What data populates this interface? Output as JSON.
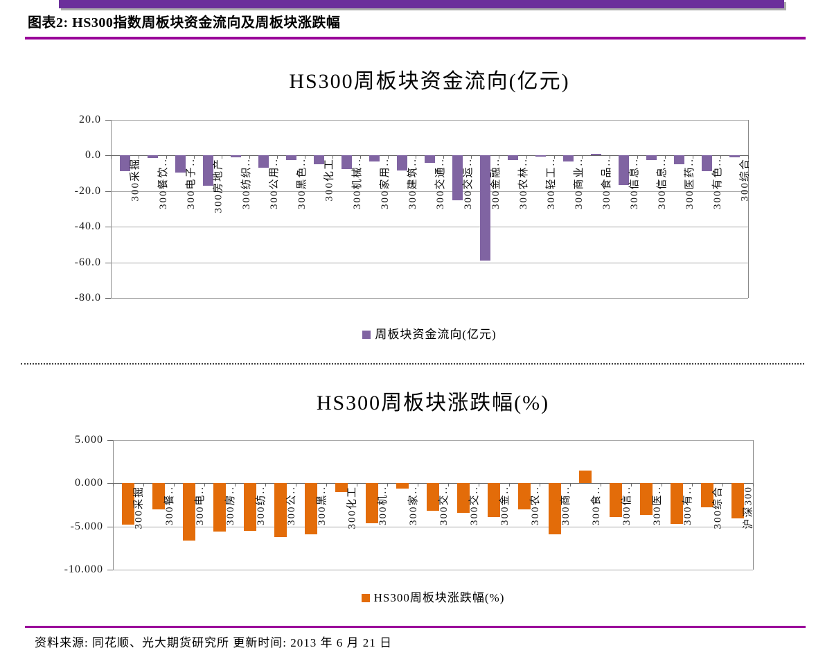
{
  "header": {
    "title": "图表2: HS300指数周板块资金流向及周板块涨跌幅"
  },
  "footer": {
    "source": "资料来源: 同花顺、光大期货研究所 更新时间: 2013 年 6 月 21 日"
  },
  "colors": {
    "banner": "#6B2F9B",
    "rule": "#990099",
    "flow_bar": "#8064A2",
    "change_bar": "#E36C09"
  },
  "chart_data": [
    {
      "type": "bar",
      "title": "HS300周板块资金流向(亿元)",
      "legend": "周板块资金流向(亿元)",
      "legend_position": "bottom",
      "bar_color": "#8064A2",
      "grid": true,
      "ylim": [
        -80,
        20
      ],
      "yticks": [
        20,
        0,
        -20,
        -40,
        -60,
        -80
      ],
      "ytick_labels": [
        "20.0",
        "0.0",
        "-20.0",
        "-40.0",
        "-60.0",
        "-80.0"
      ],
      "categories": [
        "300采掘",
        "300餐饮..",
        "300电子..",
        "300房地产",
        "300纺织..",
        "300公用..",
        "300黑色..",
        "300化工",
        "300机械..",
        "300家用..",
        "300建筑..",
        "300交通..",
        "300交运..",
        "300金融..",
        "300农林..",
        "300轻工..",
        "300商业..",
        "300食品..",
        "300信息..",
        "300信息..",
        "300医药..",
        "300有色..",
        "300综合"
      ],
      "values": [
        -9,
        -1.5,
        -9.5,
        -17,
        -1,
        -7,
        -2.5,
        -5,
        -7.5,
        -3.5,
        -8.5,
        -4,
        -25,
        -59,
        -2.5,
        -0.5,
        -3.5,
        1,
        -16.5,
        -2.5,
        -5,
        -9,
        -1
      ]
    },
    {
      "type": "bar",
      "title": "HS300周板块涨跌幅(%)",
      "legend": "HS300周板块涨跌幅(%)",
      "legend_position": "bottom",
      "bar_color": "#E36C09",
      "grid": true,
      "ylim": [
        -10,
        5
      ],
      "yticks": [
        5,
        0,
        -5,
        -10
      ],
      "ytick_labels": [
        "5.000",
        "0.000",
        "-5.000",
        "-10.000"
      ],
      "categories": [
        "300采掘",
        "300餐..",
        "300电..",
        "300房..",
        "300纺..",
        "300公..",
        "300黑..",
        "300化工",
        "300机..",
        "300家..",
        "300交..",
        "300交..",
        "300金..",
        "300农..",
        "300商..",
        "300食..",
        "300信..",
        "300医..",
        "300有..",
        "300综合",
        "沪深300"
      ],
      "values": [
        -4.8,
        -3.0,
        -6.6,
        -5.6,
        -5.5,
        -6.2,
        -5.9,
        -1.0,
        -4.6,
        -0.6,
        -3.2,
        -3.4,
        -3.9,
        -3.0,
        -5.9,
        1.5,
        -3.9,
        -3.7,
        -4.7,
        -2.8,
        -4.1
      ]
    }
  ]
}
